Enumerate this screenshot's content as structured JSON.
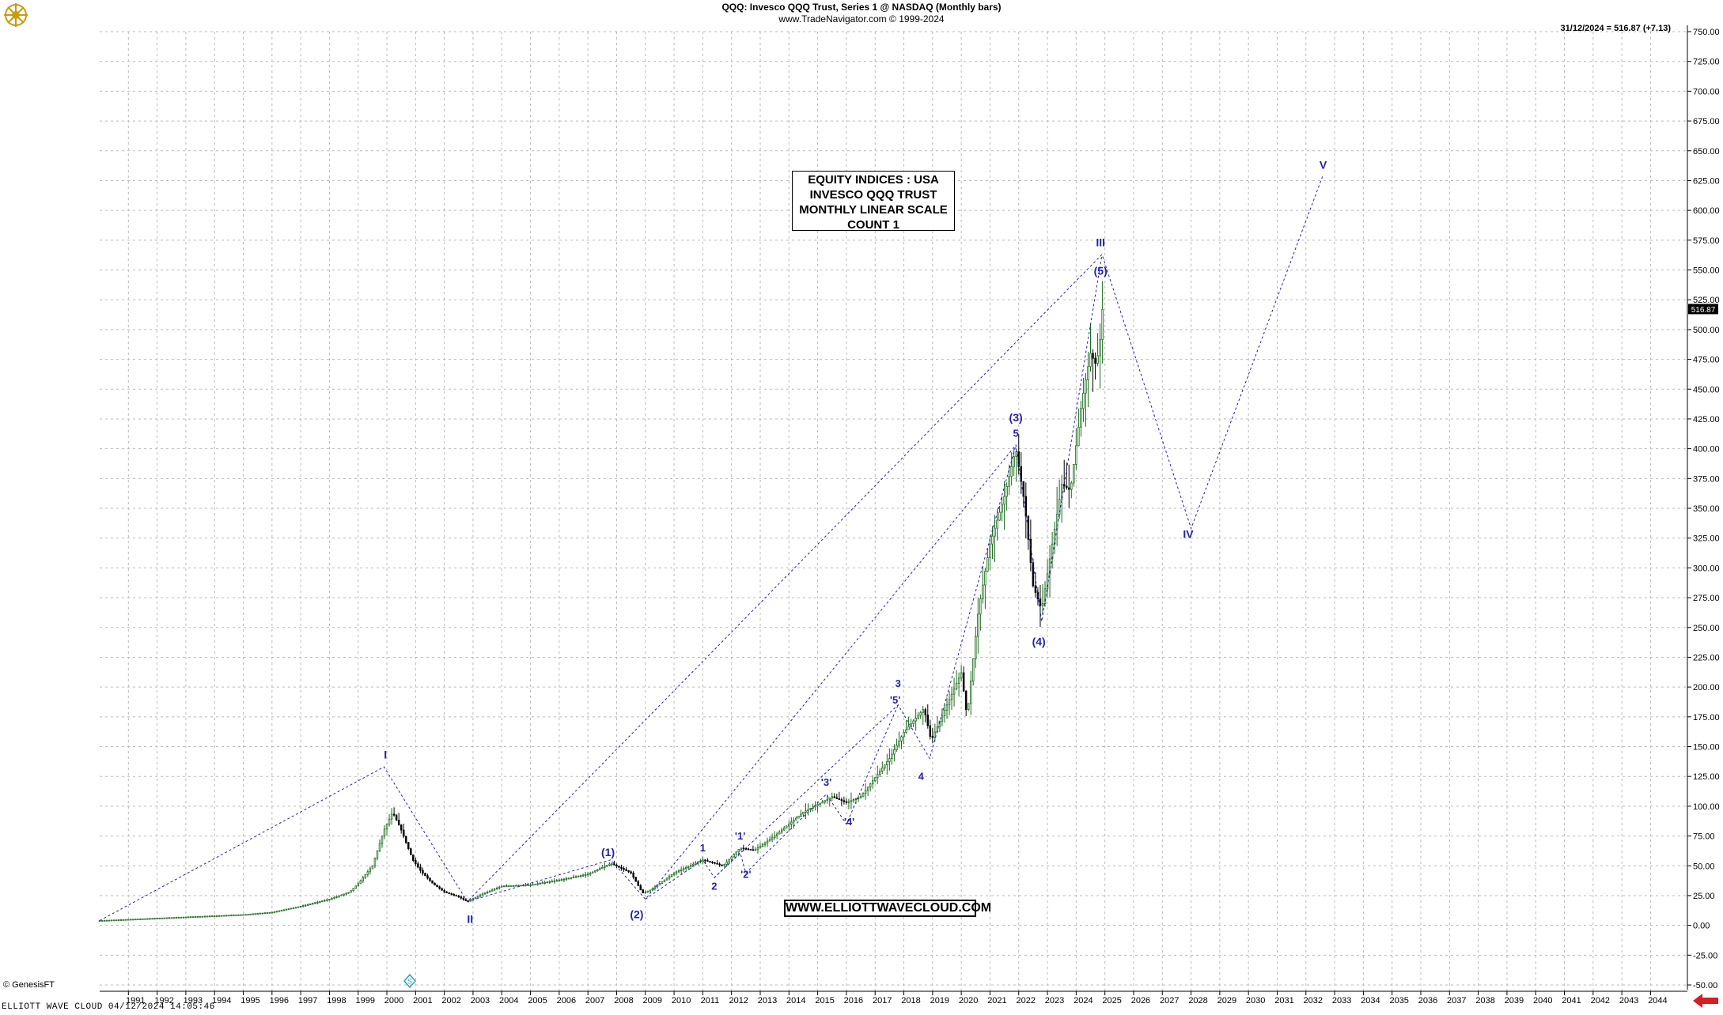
{
  "header": {
    "title": "QQQ:  Invesco QQQ Trust, Series 1 @ NASDAQ  (Monthly bars)",
    "subtitle": "www.TradeNavigator.com © 1999-2024"
  },
  "last_info": "31/12/2024 = 516.87 (+7.13)",
  "last_price_tag": "516.87",
  "info_box": [
    "EQUITY INDICES : USA",
    "INVESCO QQQ TRUST",
    "MONTHLY LINEAR SCALE",
    "COUNT 1"
  ],
  "url_box": "WWW.ELLIOTTWAVECLOUD.COM",
  "copyright": "© GenesisFT",
  "footer": "ELLIOTT WAVE CLOUD   04/12/2024 14:05:46",
  "colors": {
    "wave": "#2323a8",
    "grid": "#b9b9b9",
    "up_candle": "#1a6b1a",
    "down_candle": "#000000",
    "price_tag": "#000000",
    "arrow": "#d42020"
  },
  "chart_data": {
    "type": "candlestick",
    "title": "QQQ:  Invesco QQQ Trust, Series 1 @ NASDAQ  (Monthly bars)",
    "x_ticks": [
      "1991",
      "1992",
      "1993",
      "1994",
      "1995",
      "1996",
      "1997",
      "1998",
      "1999",
      "2000",
      "2001",
      "2002",
      "2003",
      "2004",
      "2005",
      "2006",
      "2007",
      "2008",
      "2009",
      "2010",
      "2011",
      "2012",
      "2013",
      "2014",
      "2015",
      "2016",
      "2017",
      "2018",
      "2019",
      "2020",
      "2021",
      "2022",
      "2023",
      "2024",
      "2025",
      "2026",
      "2027",
      "2028",
      "2029",
      "2030",
      "2031",
      "2032",
      "2033",
      "2034",
      "2035",
      "2036",
      "2037",
      "2038",
      "2039",
      "2040",
      "2041",
      "2042",
      "2043",
      "2044"
    ],
    "y_ticks": [
      "-50.00",
      "-25.00",
      "0.00",
      "25.00",
      "50.00",
      "75.00",
      "100.00",
      "125.00",
      "150.00",
      "175.00",
      "200.00",
      "225.00",
      "250.00",
      "275.00",
      "300.00",
      "325.00",
      "350.00",
      "375.00",
      "400.00",
      "425.00",
      "450.00",
      "475.00",
      "500.00",
      "525.00",
      "550.00",
      "575.00",
      "600.00",
      "625.00",
      "650.00",
      "675.00",
      "700.00",
      "725.00",
      "750.00"
    ],
    "ylim": [
      -50,
      750
    ],
    "xlim": [
      1990.0,
      2045.2
    ],
    "grid": true,
    "price_anchors": [
      {
        "t": 1990.0,
        "v": 4
      },
      {
        "t": 1991.0,
        "v": 5
      },
      {
        "t": 1993.0,
        "v": 7
      },
      {
        "t": 1995.0,
        "v": 9
      },
      {
        "t": 1996.0,
        "v": 11
      },
      {
        "t": 1997.0,
        "v": 16
      },
      {
        "t": 1998.0,
        "v": 22
      },
      {
        "t": 1998.7,
        "v": 28
      },
      {
        "t": 1999.0,
        "v": 35
      },
      {
        "t": 1999.5,
        "v": 50
      },
      {
        "t": 1999.9,
        "v": 80
      },
      {
        "t": 2000.2,
        "v": 95
      },
      {
        "t": 2000.5,
        "v": 80
      },
      {
        "t": 2000.9,
        "v": 55
      },
      {
        "t": 2001.2,
        "v": 45
      },
      {
        "t": 2001.6,
        "v": 35
      },
      {
        "t": 2002.0,
        "v": 28
      },
      {
        "t": 2002.5,
        "v": 24
      },
      {
        "t": 2002.8,
        "v": 20
      },
      {
        "t": 2003.2,
        "v": 25
      },
      {
        "t": 2004.0,
        "v": 33
      },
      {
        "t": 2005.0,
        "v": 34
      },
      {
        "t": 2006.0,
        "v": 38
      },
      {
        "t": 2007.0,
        "v": 43
      },
      {
        "t": 2007.8,
        "v": 52
      },
      {
        "t": 2008.5,
        "v": 44
      },
      {
        "t": 2008.9,
        "v": 27
      },
      {
        "t": 2009.2,
        "v": 30
      },
      {
        "t": 2010.0,
        "v": 44
      },
      {
        "t": 2011.0,
        "v": 55
      },
      {
        "t": 2011.7,
        "v": 50
      },
      {
        "t": 2012.3,
        "v": 65
      },
      {
        "t": 2012.8,
        "v": 63
      },
      {
        "t": 2013.5,
        "v": 75
      },
      {
        "t": 2014.5,
        "v": 95
      },
      {
        "t": 2015.5,
        "v": 108
      },
      {
        "t": 2016.0,
        "v": 103
      },
      {
        "t": 2016.5,
        "v": 108
      },
      {
        "t": 2017.5,
        "v": 140
      },
      {
        "t": 2018.0,
        "v": 162
      },
      {
        "t": 2018.7,
        "v": 182
      },
      {
        "t": 2018.95,
        "v": 155
      },
      {
        "t": 2019.5,
        "v": 185
      },
      {
        "t": 2020.0,
        "v": 212
      },
      {
        "t": 2020.2,
        "v": 175
      },
      {
        "t": 2020.6,
        "v": 265
      },
      {
        "t": 2021.0,
        "v": 320
      },
      {
        "t": 2021.5,
        "v": 360
      },
      {
        "t": 2021.9,
        "v": 400
      },
      {
        "t": 2022.2,
        "v": 355
      },
      {
        "t": 2022.5,
        "v": 285
      },
      {
        "t": 2022.8,
        "v": 265
      },
      {
        "t": 2023.0,
        "v": 295
      },
      {
        "t": 2023.5,
        "v": 370
      },
      {
        "t": 2023.8,
        "v": 365
      },
      {
        "t": 2024.2,
        "v": 440
      },
      {
        "t": 2024.5,
        "v": 480
      },
      {
        "t": 2024.7,
        "v": 470
      },
      {
        "t": 2024.99,
        "v": 516.87
      }
    ],
    "last_close": 516.87,
    "wave_lines": [
      [
        [
          1990.0,
          4
        ],
        [
          1999.9,
          133
        ],
        [
          2002.8,
          20
        ],
        [
          2024.9,
          563
        ],
        [
          2028.0,
          333
        ],
        [
          2032.6,
          630
        ]
      ],
      [
        [
          2002.8,
          20
        ],
        [
          2007.8,
          55
        ],
        [
          2009.0,
          22
        ],
        [
          2021.9,
          403
        ],
        [
          2022.8,
          255
        ],
        [
          2024.9,
          563
        ]
      ],
      [
        [
          2009.0,
          22
        ],
        [
          2011.0,
          55
        ],
        [
          2011.4,
          40
        ],
        [
          2017.8,
          185
        ],
        [
          2018.9,
          140
        ],
        [
          2021.9,
          403
        ]
      ],
      [
        [
          2011.4,
          40
        ],
        [
          2012.3,
          61
        ],
        [
          2012.5,
          44
        ],
        [
          2015.3,
          110
        ],
        [
          2016.0,
          85
        ],
        [
          2017.8,
          185
        ]
      ]
    ],
    "wave_labels": [
      {
        "text": "I",
        "t": 1999.95,
        "v": 140,
        "size": 14
      },
      {
        "text": "II",
        "t": 2002.9,
        "v": 2,
        "size": 14
      },
      {
        "text": "III",
        "t": 2024.85,
        "v": 570,
        "size": 14
      },
      {
        "text": "IV",
        "t": 2027.9,
        "v": 325,
        "size": 14
      },
      {
        "text": "V",
        "t": 2032.6,
        "v": 635,
        "size": 14
      },
      {
        "text": "(1)",
        "t": 2007.7,
        "v": 58,
        "size": 14
      },
      {
        "text": "(2)",
        "t": 2008.7,
        "v": 6,
        "size": 14
      },
      {
        "text": "(3)",
        "t": 2021.9,
        "v": 423,
        "size": 14
      },
      {
        "text": "(4)",
        "t": 2022.7,
        "v": 235,
        "size": 14
      },
      {
        "text": "(5)",
        "t": 2024.85,
        "v": 546,
        "size": 14
      },
      {
        "text": "1",
        "t": 2011.0,
        "v": 62,
        "size": 13
      },
      {
        "text": "2",
        "t": 2011.4,
        "v": 30,
        "size": 13
      },
      {
        "text": "3",
        "t": 2017.8,
        "v": 200,
        "size": 13
      },
      {
        "text": "4",
        "t": 2018.6,
        "v": 122,
        "size": 13
      },
      {
        "text": "5",
        "t": 2021.9,
        "v": 410,
        "size": 13
      },
      {
        "text": "'1'",
        "t": 2012.3,
        "v": 72,
        "size": 13
      },
      {
        "text": "'2'",
        "t": 2012.5,
        "v": 40,
        "size": 13
      },
      {
        "text": "'3'",
        "t": 2015.3,
        "v": 117,
        "size": 13
      },
      {
        "text": "'4'",
        "t": 2016.1,
        "v": 84,
        "size": 13
      },
      {
        "text": "'5'",
        "t": 2017.7,
        "v": 186,
        "size": 13
      }
    ]
  }
}
